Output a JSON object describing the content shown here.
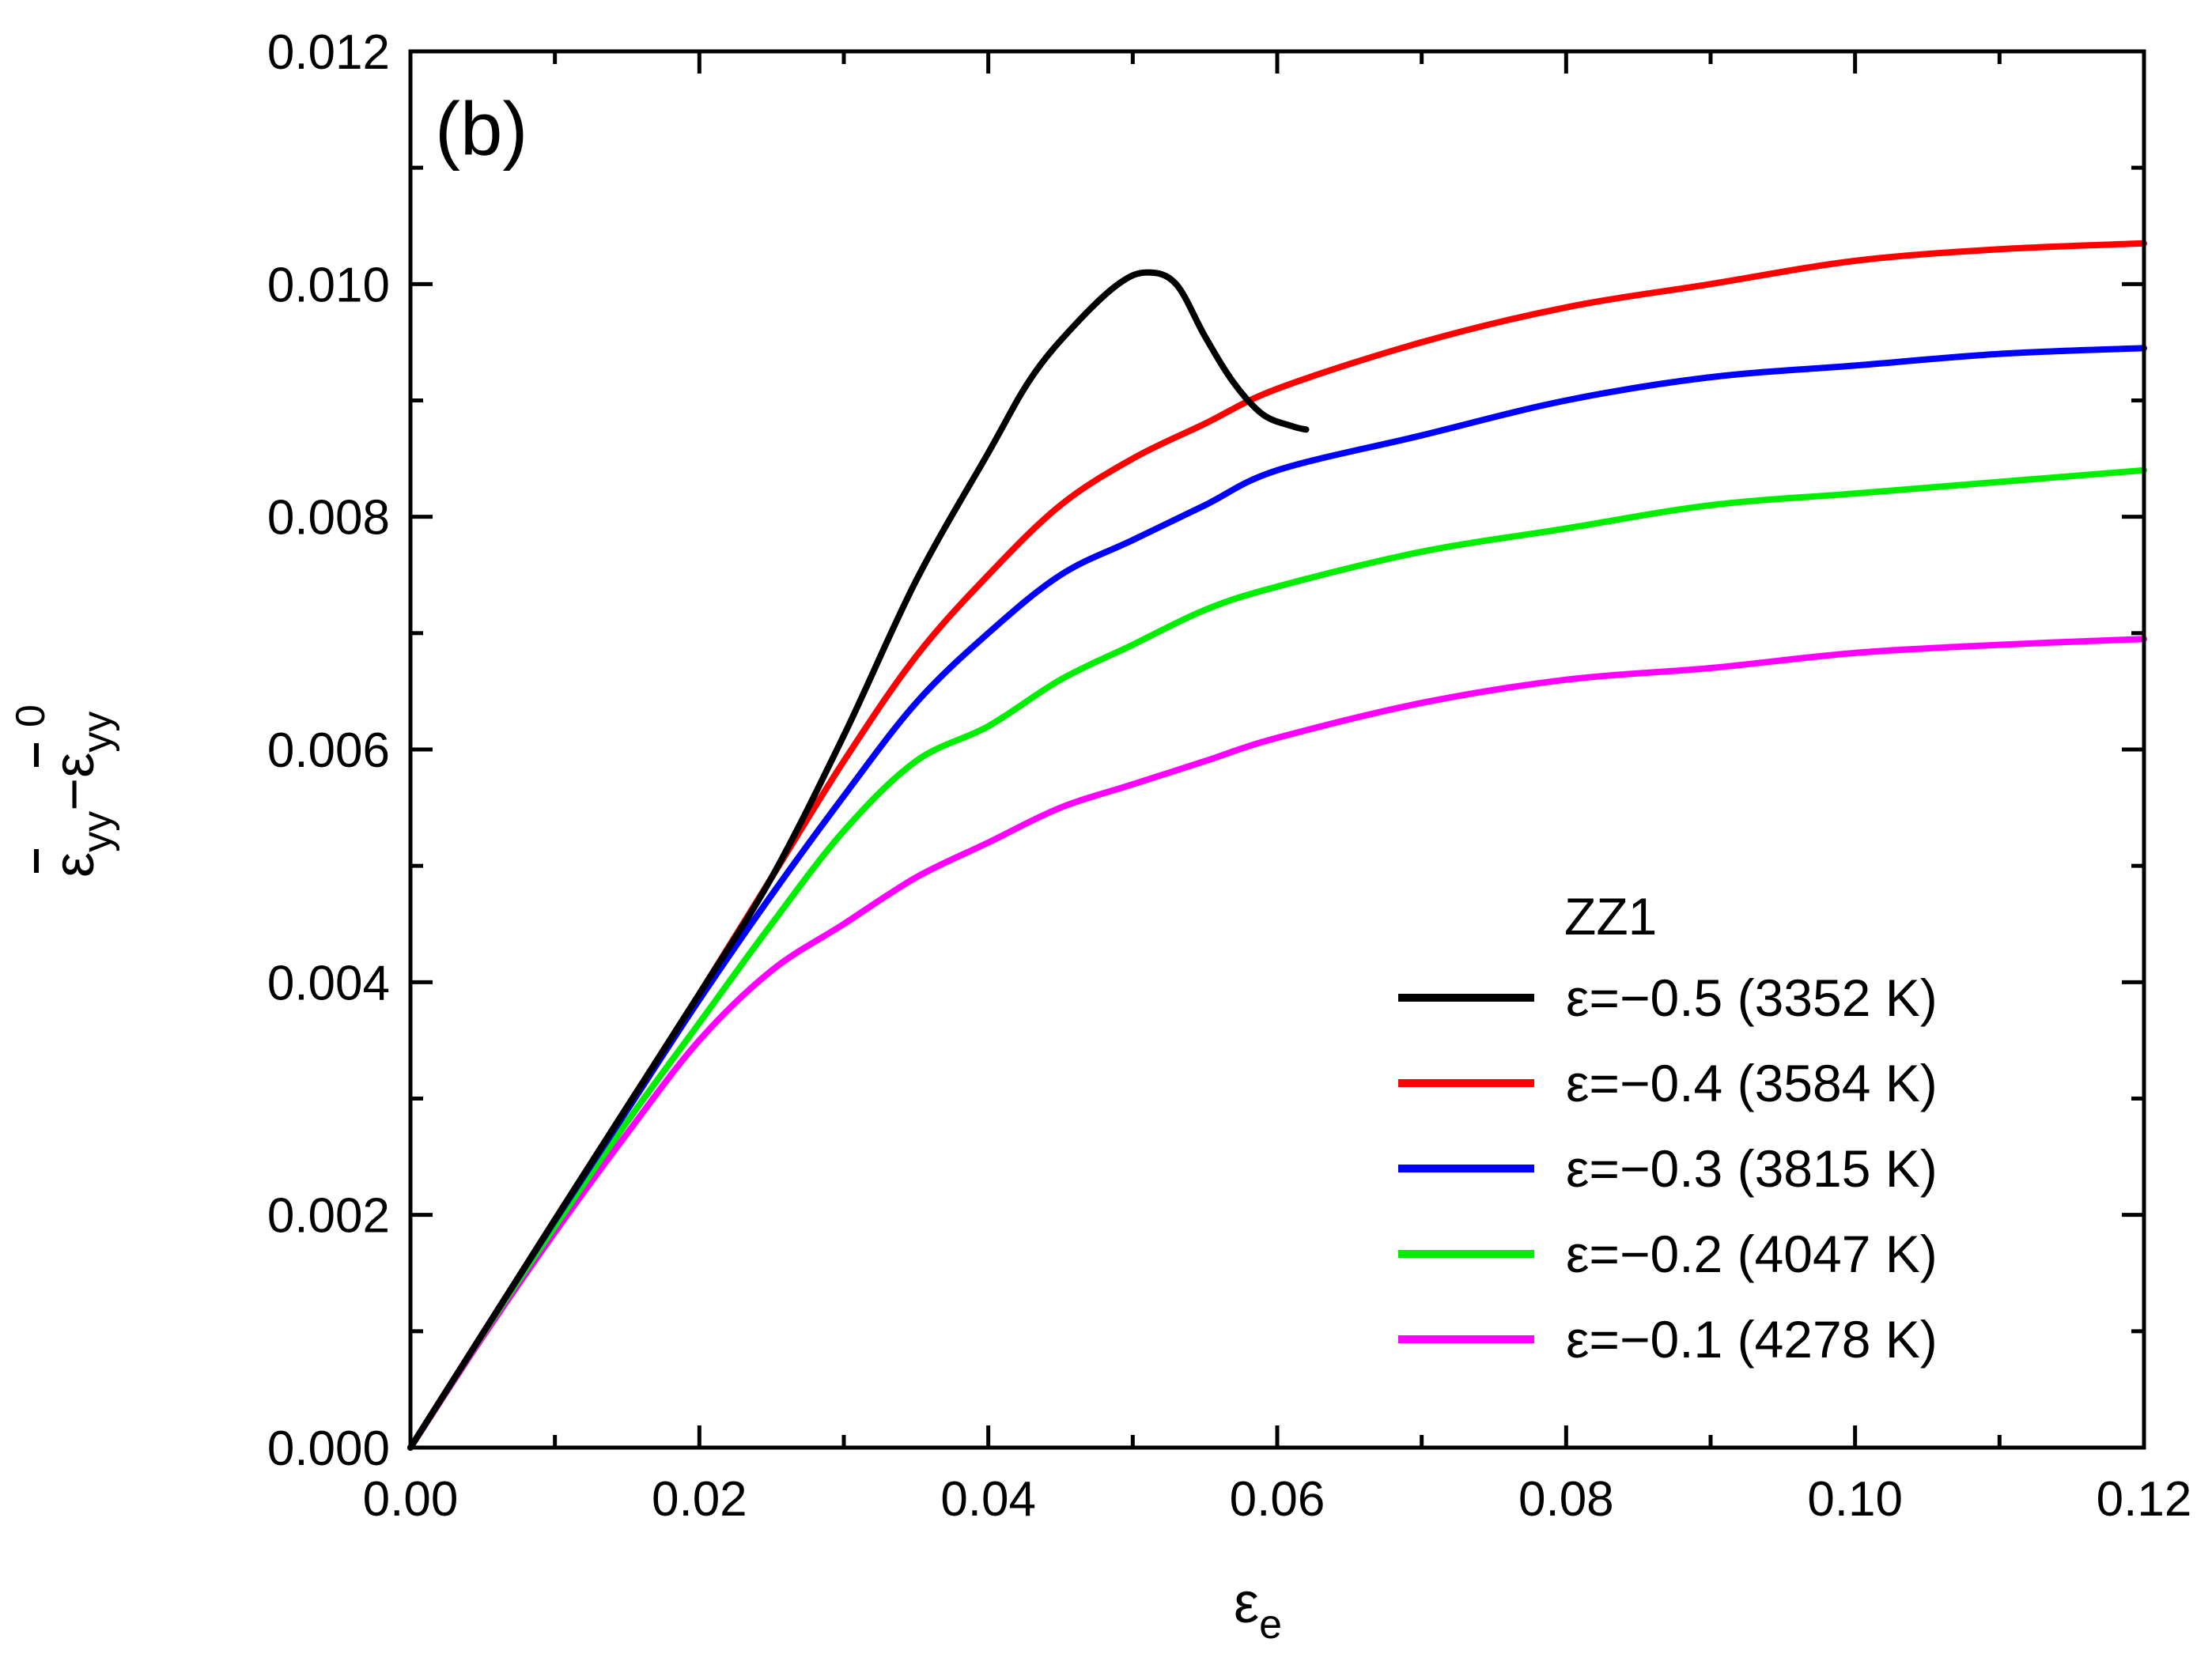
{
  "chart_data": {
    "type": "line",
    "panel_label": "(b)",
    "xlabel": "ε",
    "xlabel_sub": "e",
    "ylabel": "ε̄yy − ε̄⁰yy",
    "ylabel_parts": {
      "eps1": "ε",
      "sub1": "yy",
      "minus": "−",
      "eps2": "ε",
      "sub2": "yy",
      "sup2": "0"
    },
    "xlim": [
      0,
      0.12
    ],
    "ylim": [
      0,
      0.012
    ],
    "x_ticks": [
      "0.00",
      "0.02",
      "0.04",
      "0.06",
      "0.08",
      "0.10",
      "0.12"
    ],
    "y_ticks": [
      "0.000",
      "0.002",
      "0.004",
      "0.006",
      "0.008",
      "0.010",
      "0.012"
    ],
    "legend_title": "ZZ1",
    "legend_position": "bottom-right",
    "series": [
      {
        "name": "ε=−0.5 (3352 K)",
        "color": "#000000",
        "x": [
          0,
          0.005,
          0.01,
          0.015,
          0.02,
          0.025,
          0.03,
          0.035,
          0.04,
          0.043,
          0.046,
          0.049,
          0.051,
          0.053,
          0.055,
          0.057,
          0.059,
          0.061,
          0.062
        ],
        "y": [
          0,
          0.00098,
          0.00196,
          0.00293,
          0.0039,
          0.0049,
          0.00612,
          0.00745,
          0.00855,
          0.0092,
          0.00965,
          0.01,
          0.0101,
          0.01,
          0.00955,
          0.00915,
          0.00888,
          0.00878,
          0.00875
        ]
      },
      {
        "name": "ε=−0.4 (3584 K)",
        "color": "#ff0000",
        "x": [
          0,
          0.005,
          0.01,
          0.015,
          0.02,
          0.025,
          0.03,
          0.035,
          0.04,
          0.045,
          0.05,
          0.055,
          0.06,
          0.07,
          0.08,
          0.09,
          0.1,
          0.11,
          0.12
        ],
        "y": [
          0,
          0.00098,
          0.00196,
          0.00293,
          0.0039,
          0.0049,
          0.0059,
          0.0068,
          0.0075,
          0.0081,
          0.0085,
          0.0088,
          0.0091,
          0.0095,
          0.0098,
          0.01,
          0.0102,
          0.0103,
          0.01035
        ]
      },
      {
        "name": "ε=−0.3 (3815 K)",
        "color": "#0000ff",
        "x": [
          0,
          0.005,
          0.01,
          0.015,
          0.02,
          0.025,
          0.03,
          0.035,
          0.04,
          0.045,
          0.05,
          0.055,
          0.06,
          0.07,
          0.08,
          0.09,
          0.1,
          0.11,
          0.12
        ],
        "y": [
          0,
          0.00098,
          0.00195,
          0.0029,
          0.00385,
          0.00475,
          0.0056,
          0.0064,
          0.007,
          0.0075,
          0.0078,
          0.0081,
          0.0084,
          0.0087,
          0.009,
          0.0092,
          0.0093,
          0.0094,
          0.00945
        ]
      },
      {
        "name": "ε=−0.2 (4047 K)",
        "color": "#00ee00",
        "x": [
          0,
          0.005,
          0.01,
          0.015,
          0.02,
          0.025,
          0.03,
          0.035,
          0.04,
          0.045,
          0.05,
          0.055,
          0.06,
          0.07,
          0.08,
          0.09,
          0.1,
          0.11,
          0.12
        ],
        "y": [
          0,
          0.00097,
          0.0019,
          0.0028,
          0.00365,
          0.0045,
          0.0053,
          0.0059,
          0.0062,
          0.0066,
          0.0069,
          0.0072,
          0.0074,
          0.0077,
          0.0079,
          0.0081,
          0.0082,
          0.0083,
          0.0084
        ]
      },
      {
        "name": "ε=−0.1 (4278 K)",
        "color": "#ff00ff",
        "x": [
          0,
          0.005,
          0.01,
          0.015,
          0.02,
          0.025,
          0.03,
          0.035,
          0.04,
          0.045,
          0.05,
          0.055,
          0.06,
          0.07,
          0.08,
          0.09,
          0.1,
          0.11,
          0.12
        ],
        "y": [
          0,
          0.00095,
          0.00185,
          0.0027,
          0.0035,
          0.0041,
          0.0045,
          0.0049,
          0.0052,
          0.0055,
          0.0057,
          0.0059,
          0.0061,
          0.0064,
          0.0066,
          0.0067,
          0.00683,
          0.0069,
          0.00695
        ]
      }
    ]
  }
}
